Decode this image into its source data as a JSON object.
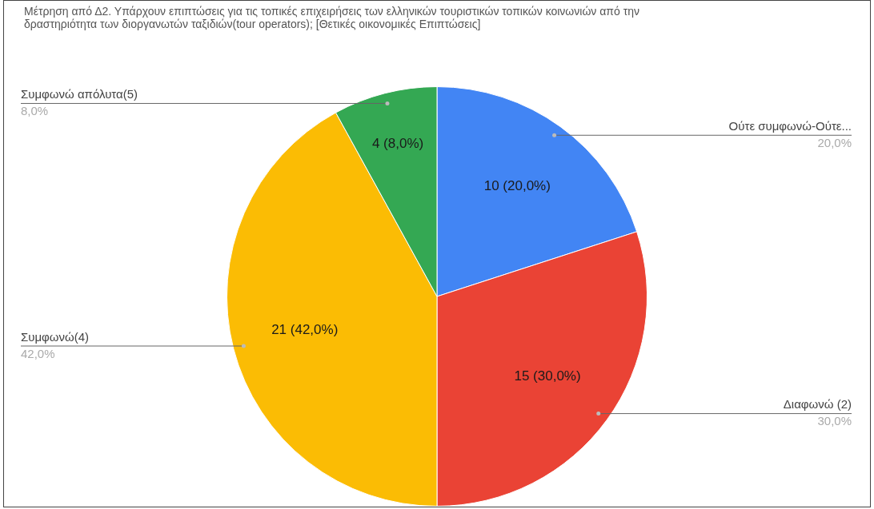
{
  "chart_data": {
    "type": "pie",
    "title": "Μέτρηση από Δ2. Υπάρχουν επιπτώσεις για τις τοπικές επιχειρήσεις  των ελληνικών τουριστικών τοπικών κοινωνιών από την δραστηριότητα των διοργανωτών ταξιδιών(tour operators);   [Θετικές οικονομικές Επιπτώσεις]",
    "categories": [
      "Ούτε συμφωνώ-Ούτε...",
      "Διαφωνώ (2)",
      "Συμφωνώ(4)",
      "Συμφωνώ απόλυτα(5)"
    ],
    "values": [
      10,
      15,
      21,
      4
    ],
    "colors": [
      "#4285f4",
      "#ea4335",
      "#fbbc04",
      "#34a853"
    ],
    "value_labels": [
      "10 (20,0%)",
      "15 (30,0%)",
      "21 (42,0%)",
      "4 (8,0%)"
    ],
    "annotations": [
      {
        "text": "20,0%",
        "x": "Ούτε συμφωνώ-Ούτε..."
      },
      {
        "text": "30,0%",
        "x": "Διαφωνώ (2)"
      },
      {
        "text": "42,0%",
        "x": "Συμφωνώ(4)"
      },
      {
        "text": "8,0%",
        "x": "Συμφωνώ απόλυτα(5)"
      }
    ],
    "legend": false
  }
}
